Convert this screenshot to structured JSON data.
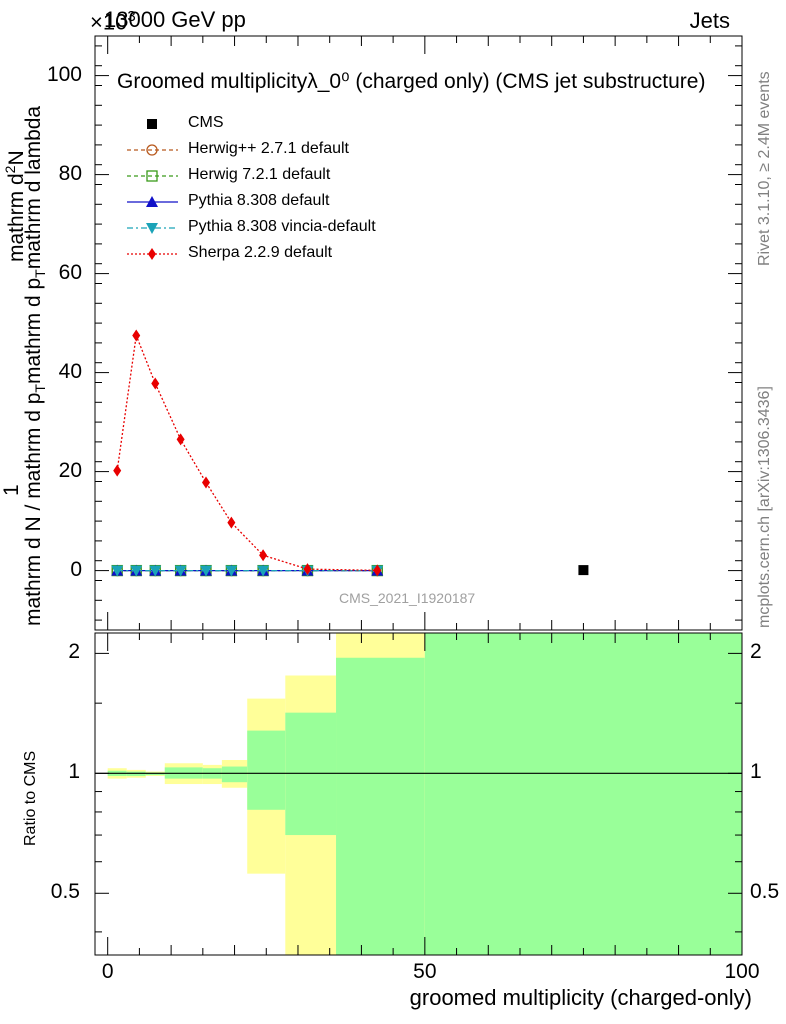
{
  "header": {
    "energy": "13000 GeV pp",
    "process": "Jets",
    "exponent": "×10"
  },
  "side": {
    "rivet": "Rivet 3.1.10, ≥ 2.4M events",
    "mcplots": "mcplots.cern.ch [arXiv:1306.3436]"
  },
  "chart_data": [
    {
      "type": "line",
      "panel": "main",
      "title": "Groomed multiplicityλ_0⁰ (charged only) (CMS jet substructure)",
      "ylabel": "1/mathrm d N / mathrm d p_T mathrm d p_T mathrm d lambda mathrm d²N",
      "ylabel_parts": {
        "top": "1",
        "bottom": "mathrm d N / mathrm d p",
        "bottom_sub": "T",
        "bottom_rest": "mathrm d p",
        "bottom_sub2": "T",
        "bottom_tail": "mathrm d lambda",
        "numerator": "mathrm d",
        "numerator_sup": "2",
        "numerator_tail": "N"
      },
      "analysis_label": "CMS_2021_I1920187",
      "xlim": [
        -2,
        100
      ],
      "ylim": [
        -12,
        108
      ],
      "yticks": [
        0,
        20,
        40,
        60,
        80,
        100
      ],
      "y_multiplier_exponent": "3",
      "legend_position": "top-left",
      "legend": [
        {
          "name": "CMS",
          "color": "#000000",
          "marker": "square",
          "line": "none"
        },
        {
          "name": "Herwig++ 2.7.1 default",
          "color": "#b8591e",
          "marker": "open-circle",
          "line": "dashed"
        },
        {
          "name": "Herwig 7.2.1 default",
          "color": "#3a9a1a",
          "marker": "open-square",
          "line": "dashed"
        },
        {
          "name": "Pythia 8.308 default",
          "color": "#1010c8",
          "marker": "triangle-up",
          "line": "solid"
        },
        {
          "name": "Pythia 8.308 vincia-default",
          "color": "#1aa3b8",
          "marker": "triangle-down",
          "line": "dashdot"
        },
        {
          "name": "Sherpa 2.2.9 default",
          "color": "#e80000",
          "marker": "diamond",
          "line": "dotted"
        }
      ],
      "x": [
        1.5,
        4.5,
        7.5,
        11.5,
        15.5,
        19.5,
        24.5,
        31.5,
        42.5
      ],
      "series": [
        {
          "name": "Herwig++ 2.7.1 default",
          "values": [
            0,
            0,
            0,
            0,
            0,
            0,
            0,
            0,
            0
          ]
        },
        {
          "name": "Herwig 7.2.1 default",
          "values": [
            0,
            0,
            0,
            0,
            0,
            0,
            0,
            0,
            0
          ]
        },
        {
          "name": "Pythia 8.308 default",
          "values": [
            0,
            0,
            0,
            0,
            0,
            0,
            0,
            0,
            0
          ]
        },
        {
          "name": "Pythia 8.308 vincia-default",
          "values": [
            0,
            0,
            0,
            0,
            0,
            0,
            0,
            0,
            0
          ]
        },
        {
          "name": "Sherpa 2.2.9 default",
          "values": [
            20.2,
            47.5,
            37.8,
            26.5,
            17.8,
            9.7,
            3.1,
            0.3,
            0.05
          ]
        }
      ],
      "data_points": [
        {
          "name": "CMS",
          "x": 75,
          "y": 0.1
        }
      ]
    },
    {
      "type": "area",
      "panel": "ratio",
      "ylabel": "Ratio to CMS",
      "xlabel": "groomed multiplicity (charged-only)",
      "xlim": [
        -2,
        100
      ],
      "ylim": [
        0.35,
        2.25
      ],
      "yticks": [
        0.5,
        1,
        2
      ],
      "xticks": [
        0,
        50,
        100
      ],
      "reference_line": 1,
      "bands": [
        {
          "x0": 0,
          "x1": 3,
          "green": [
            0.985,
            1.015
          ],
          "yellow": [
            0.97,
            1.03
          ]
        },
        {
          "x0": 3,
          "x1": 6,
          "green": [
            0.985,
            1.01
          ],
          "yellow": [
            0.975,
            1.02
          ]
        },
        {
          "x0": 6,
          "x1": 9,
          "green": [
            0.99,
            1.005
          ],
          "yellow": [
            0.985,
            1.01
          ]
        },
        {
          "x0": 9,
          "x1": 15,
          "green": [
            0.97,
            1.035
          ],
          "yellow": [
            0.94,
            1.06
          ]
        },
        {
          "x0": 15,
          "x1": 18,
          "green": [
            0.97,
            1.03
          ],
          "yellow": [
            0.94,
            1.05
          ]
        },
        {
          "x0": 18,
          "x1": 22,
          "green": [
            0.95,
            1.04
          ],
          "yellow": [
            0.92,
            1.08
          ]
        },
        {
          "x0": 22,
          "x1": 28,
          "green": [
            0.81,
            1.28
          ],
          "yellow": [
            0.56,
            1.54
          ]
        },
        {
          "x0": 28,
          "x1": 36,
          "green": [
            0.7,
            1.42
          ],
          "yellow": [
            0.35,
            1.76
          ]
        },
        {
          "x0": 36,
          "x1": 50,
          "green": [
            0.35,
            1.95
          ],
          "yellow": [
            0.35,
            2.25
          ]
        },
        {
          "x0": 50,
          "x1": 100,
          "green": [
            0.35,
            2.25
          ],
          "yellow": [
            0.35,
            2.25
          ]
        }
      ]
    }
  ]
}
